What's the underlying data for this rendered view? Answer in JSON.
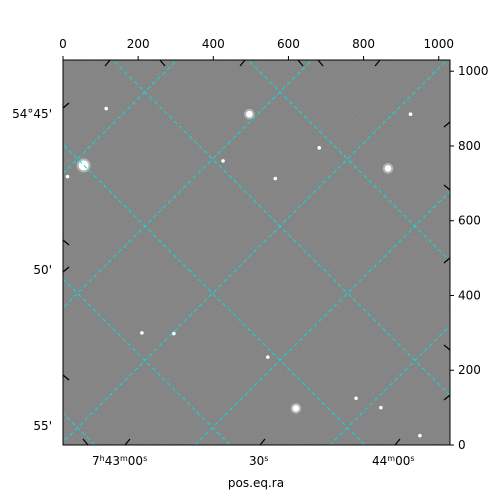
{
  "chart_data": {
    "type": "image",
    "xlabel": "pos.eq.ra",
    "pixel_axes": {
      "x_top_ticks": [
        0,
        200,
        400,
        600,
        800,
        1000
      ],
      "y_right_ticks": [
        0,
        200,
        400,
        600,
        800,
        1000
      ],
      "xlim": [
        0,
        1030
      ],
      "ylim": [
        0,
        1030
      ]
    },
    "ra_ticks": [
      {
        "label_main": "7",
        "sup1": "h",
        "mid": "43",
        "sup2": "m",
        "end": "00",
        "sup3": "s"
      },
      {
        "label_main": "30",
        "sup3": "s"
      },
      {
        "label_main": "44",
        "sup2": "m",
        "end": "00",
        "sup3": "s"
      }
    ],
    "dec_ticks": [
      "54°45'",
      "50'",
      "55'"
    ],
    "grid": true,
    "grid_color": "#00e0e0",
    "image_background": "#808080",
    "stars": [
      {
        "x": 55,
        "y": 748,
        "mag": "bright"
      },
      {
        "x": 12,
        "y": 718,
        "mag": "faint"
      },
      {
        "x": 115,
        "y": 900,
        "mag": "faint"
      },
      {
        "x": 496,
        "y": 885,
        "mag": "medium"
      },
      {
        "x": 682,
        "y": 795,
        "mag": "faint"
      },
      {
        "x": 865,
        "y": 740,
        "mag": "medium"
      },
      {
        "x": 565,
        "y": 713,
        "mag": "faint"
      },
      {
        "x": 426,
        "y": 760,
        "mag": "faint"
      },
      {
        "x": 210,
        "y": 300,
        "mag": "faint"
      },
      {
        "x": 295,
        "y": 298,
        "mag": "faint"
      },
      {
        "x": 545,
        "y": 235,
        "mag": "faint"
      },
      {
        "x": 620,
        "y": 98,
        "mag": "medium"
      },
      {
        "x": 846,
        "y": 100,
        "mag": "faint"
      },
      {
        "x": 780,
        "y": 125,
        "mag": "faint"
      },
      {
        "x": 950,
        "y": 25,
        "mag": "faint"
      },
      {
        "x": 925,
        "y": 885,
        "mag": "faint"
      }
    ]
  }
}
